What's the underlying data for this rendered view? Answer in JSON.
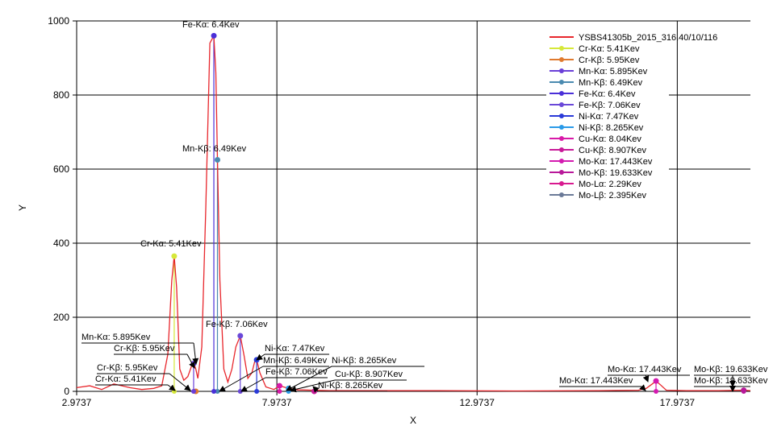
{
  "chart_data": {
    "type": "line",
    "title": "",
    "xlabel": "X",
    "ylabel": "Y",
    "xlim": [
      2.9737,
      19.8
    ],
    "ylim": [
      0,
      1000
    ],
    "x_ticks": [
      2.9737,
      7.9737,
      12.9737,
      17.9737
    ],
    "x_tick_labels": [
      "2.9737",
      "7.9737",
      "12.9737",
      "17.9737"
    ],
    "y_ticks": [
      0,
      200,
      400,
      600,
      800,
      1000
    ],
    "y_tick_labels": [
      "0",
      "200",
      "400",
      "600",
      "800",
      "1000"
    ],
    "grid": true,
    "legend_position": "top-right",
    "spectrum": {
      "name": "YSBS41305b_2015_316.40/10/116",
      "color": "#e8262c",
      "x": [
        2.9737,
        3.3,
        3.6,
        3.9,
        4.3,
        4.6,
        4.9,
        5.1,
        5.25,
        5.35,
        5.41,
        5.47,
        5.55,
        5.65,
        5.75,
        5.85,
        5.9,
        5.95,
        6.0,
        6.1,
        6.2,
        6.3,
        6.4,
        6.45,
        6.49,
        6.55,
        6.65,
        6.75,
        6.85,
        6.95,
        7.06,
        7.15,
        7.25,
        7.35,
        7.42,
        7.47,
        7.55,
        7.7,
        7.9,
        8.04,
        8.265,
        8.5,
        8.907,
        9.3,
        10.5,
        12.0,
        14.0,
        16.0,
        17.0,
        17.2,
        17.35,
        17.443,
        17.55,
        17.7,
        18.2,
        19.0,
        19.633,
        19.8
      ],
      "y": [
        10,
        15,
        5,
        20,
        10,
        5,
        8,
        15,
        100,
        300,
        365,
        280,
        60,
        30,
        40,
        70,
        75,
        60,
        35,
        120,
        500,
        940,
        960,
        860,
        625,
        300,
        60,
        25,
        60,
        120,
        150,
        100,
        35,
        50,
        80,
        85,
        50,
        12,
        5,
        15,
        8,
        4,
        3,
        2,
        2,
        2,
        1,
        2,
        3,
        8,
        20,
        28,
        18,
        3,
        2,
        2,
        3,
        2
      ]
    },
    "series": [
      {
        "name": "Cr-Kα:  5.41Kev",
        "color": "#d6e83a",
        "x": 5.41,
        "y": 365
      },
      {
        "name": "Cr-Kβ:  5.95Kev",
        "color": "#e07a2e",
        "x": 5.95,
        "y": 0
      },
      {
        "name": "Mn-Kα:  5.895Kev",
        "color": "#6a3fd8",
        "x": 5.895,
        "y": 75
      },
      {
        "name": "Mn-Kβ:  6.49Kev",
        "color": "#4a8ab0",
        "x": 6.49,
        "y": 625
      },
      {
        "name": "Fe-Kα:  6.4Kev",
        "color": "#4a2fd8",
        "x": 6.4,
        "y": 960
      },
      {
        "name": "Fe-Kβ:  7.06Kev",
        "color": "#6a48d8",
        "x": 7.06,
        "y": 150
      },
      {
        "name": "Ni-Kα:  7.47Kev",
        "color": "#2a3ad8",
        "x": 7.47,
        "y": 85
      },
      {
        "name": "Ni-Kβ:  8.265Kev",
        "color": "#2a9ae8",
        "x": 8.265,
        "y": 8
      },
      {
        "name": "Cu-Kα:  8.04Kev",
        "color": "#d81aa8",
        "x": 8.04,
        "y": 15
      },
      {
        "name": "Cu-Kβ:  8.907Kev",
        "color": "#c81a98",
        "x": 8.907,
        "y": 0
      },
      {
        "name": "Mo-Kα:  17.443Kev",
        "color": "#d41ab0",
        "x": 17.443,
        "y": 28
      },
      {
        "name": "Mo-Kβ:  19.633Kev",
        "color": "#b8189a",
        "x": 19.633,
        "y": 3
      },
      {
        "name": "Mo-Lα:  2.29Kev",
        "color": "#d81a90",
        "x": 2.29,
        "y": 0
      },
      {
        "name": "Mo-Lβ:  2.395Kev",
        "color": "#6a7a98",
        "x": 2.395,
        "y": 0
      }
    ],
    "annotations": [
      {
        "text": "Fe-Kα:  6.4Kev"
      },
      {
        "text": "Mn-Kβ:  6.49Kev"
      },
      {
        "text": "Cr-Kα:  5.41Kev"
      },
      {
        "text": "Fe-Kβ:  7.06Kev"
      },
      {
        "text": "Mn-Kα:  5.895Kev"
      },
      {
        "text": "Cr-Kβ:  5.95Kev"
      },
      {
        "text": "Cr-Kβ:  5.95Kev"
      },
      {
        "text": "Cr-Kα:  5.41Kev"
      },
      {
        "text": "Ni-Kα:  7.47Kev"
      },
      {
        "text": "Mn-Kβ:  6.49Kev"
      },
      {
        "text": "Ni-Kβ:  8.265Kev"
      },
      {
        "text": "Fe-Kβ:  7.06Kev"
      },
      {
        "text": "Cu-Kβ:  8.907Kev"
      },
      {
        "text": "Ni-Kβ:  8.265Kev"
      },
      {
        "text": "Mo-Kα:  17.443Kev"
      },
      {
        "text": "Mo-Kα:  17.443Kev"
      },
      {
        "text": "Mo-Kβ:  19.633Kev"
      },
      {
        "text": "Mo-Kβ:  19.633Kev"
      }
    ]
  }
}
